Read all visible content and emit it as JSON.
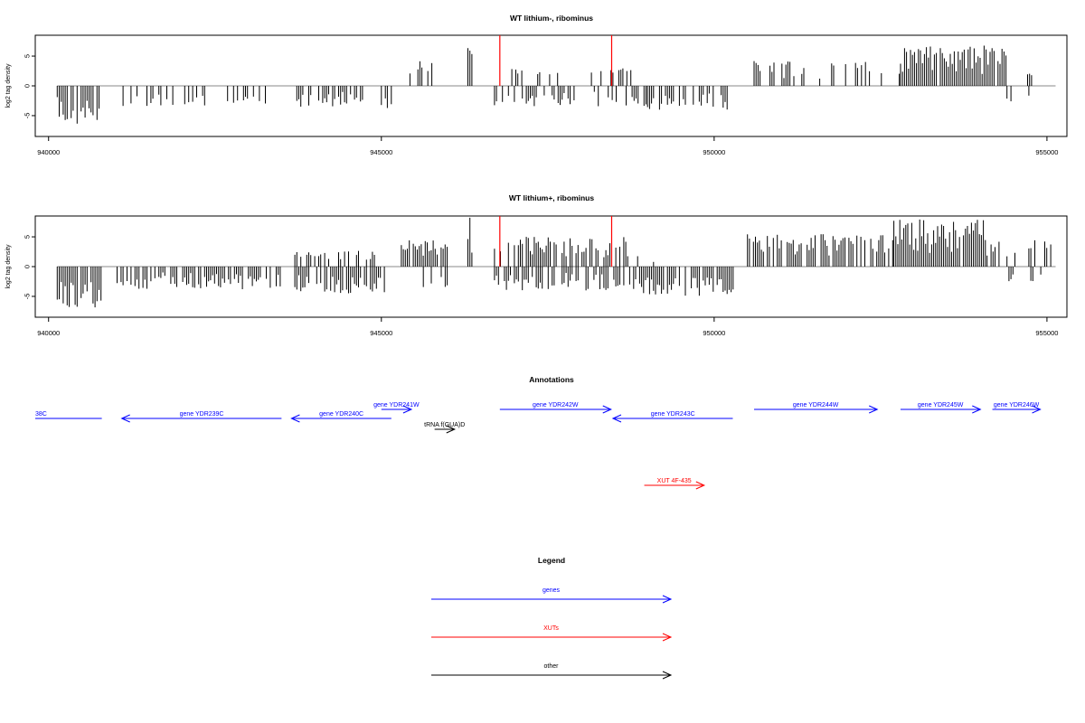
{
  "chart_data": [
    {
      "type": "bar",
      "title": "WT lithium-, ribominus",
      "ylabel": "log2 tag density",
      "xlabel": "",
      "xlim": [
        939800,
        955300
      ],
      "ylim": [
        -8.5,
        8.5
      ],
      "yticks": [
        -5,
        0,
        5
      ],
      "xticks": [
        {
          "value": 940000,
          "label": "940000"
        },
        {
          "value": 945000,
          "label": "945000"
        },
        {
          "value": 950000,
          "label": "950000"
        },
        {
          "value": 955000,
          "label": "955000"
        }
      ],
      "grid": false,
      "baseline": 0,
      "highlight_color": "#ff0000",
      "highlight_lines": [
        {
          "x": 946780,
          "top": 8.5
        },
        {
          "x": 948460,
          "top": 8.5
        }
      ],
      "segments": [
        {
          "x0": 940130,
          "x1": 940800,
          "dir": -1,
          "max": 6.5,
          "density": 0.95
        },
        {
          "x0": 941000,
          "x1": 942350,
          "dir": -1,
          "max": 3.5,
          "density": 0.45
        },
        {
          "x0": 942600,
          "x1": 943300,
          "dir": -1,
          "max": 3.0,
          "density": 0.35
        },
        {
          "x0": 943700,
          "x1": 944800,
          "dir": -1,
          "max": 3.6,
          "density": 0.5
        },
        {
          "x0": 945000,
          "x1": 945150,
          "dir": -1,
          "max": 4.0,
          "density": 0.6
        },
        {
          "x0": 945400,
          "x1": 945900,
          "dir": 1,
          "max": 4.2,
          "density": 0.4
        },
        {
          "x0": 946300,
          "x1": 946360,
          "dir": 1,
          "max": 6.5,
          "density": 1.0
        },
        {
          "x0": 946700,
          "x1": 947900,
          "dir": -1,
          "max": 3.5,
          "density": 0.45
        },
        {
          "x0": 946900,
          "x1": 948200,
          "dir": 1,
          "max": 3.0,
          "density": 0.25
        },
        {
          "x0": 948300,
          "x1": 948800,
          "dir": 1,
          "max": 3.0,
          "density": 0.3
        },
        {
          "x0": 948200,
          "x1": 949000,
          "dir": -1,
          "max": 3.5,
          "density": 0.4
        },
        {
          "x0": 949000,
          "x1": 950200,
          "dir": -1,
          "max": 4.0,
          "density": 0.6
        },
        {
          "x0": 950600,
          "x1": 952800,
          "dir": 1,
          "max": 4.2,
          "density": 0.45
        },
        {
          "x0": 952800,
          "x1": 954400,
          "dir": 1,
          "max": 6.8,
          "density": 0.95
        },
        {
          "x0": 954400,
          "x1": 954900,
          "dir": -1,
          "max": 3.0,
          "density": 0.15
        },
        {
          "x0": 954500,
          "x1": 954950,
          "dir": 1,
          "max": 2.5,
          "density": 0.15
        }
      ]
    },
    {
      "type": "bar",
      "title": "WT lithium+, ribominus",
      "ylabel": "log2 tag density",
      "xlabel": "",
      "xlim": [
        939800,
        955300
      ],
      "ylim": [
        -8.5,
        8.5
      ],
      "yticks": [
        -5,
        0,
        5
      ],
      "xticks": [
        {
          "value": 940000,
          "label": "940000"
        },
        {
          "value": 945000,
          "label": "945000"
        },
        {
          "value": 950000,
          "label": "950000"
        },
        {
          "value": 955000,
          "label": "955000"
        }
      ],
      "grid": false,
      "baseline": 0,
      "highlight_color": "#ff0000",
      "highlight_lines": [
        {
          "x": 946780,
          "top": 8.5
        },
        {
          "x": 948460,
          "top": 8.5
        }
      ],
      "segments": [
        {
          "x0": 940130,
          "x1": 940800,
          "dir": -1,
          "max": 7.0,
          "density": 0.95
        },
        {
          "x0": 941000,
          "x1": 943600,
          "dir": -1,
          "max": 3.8,
          "density": 0.7
        },
        {
          "x0": 943700,
          "x1": 945100,
          "dir": -1,
          "max": 4.5,
          "density": 0.8
        },
        {
          "x0": 943700,
          "x1": 945100,
          "dir": 1,
          "max": 2.8,
          "density": 0.3
        },
        {
          "x0": 945300,
          "x1": 946000,
          "dir": 1,
          "max": 4.5,
          "density": 0.7
        },
        {
          "x0": 945600,
          "x1": 946000,
          "dir": -1,
          "max": 3.5,
          "density": 0.4
        },
        {
          "x0": 946300,
          "x1": 946360,
          "dir": 1,
          "max": 8.5,
          "density": 1.0
        },
        {
          "x0": 946700,
          "x1": 948700,
          "dir": 1,
          "max": 5.0,
          "density": 0.7
        },
        {
          "x0": 946700,
          "x1": 948700,
          "dir": -1,
          "max": 4.0,
          "density": 0.6
        },
        {
          "x0": 948700,
          "x1": 950300,
          "dir": -1,
          "max": 5.0,
          "density": 0.75
        },
        {
          "x0": 948700,
          "x1": 949200,
          "dir": 1,
          "max": 2.5,
          "density": 0.2
        },
        {
          "x0": 950500,
          "x1": 952700,
          "dir": 1,
          "max": 5.5,
          "density": 0.8
        },
        {
          "x0": 952700,
          "x1": 954100,
          "dir": 1,
          "max": 8.0,
          "density": 0.95
        },
        {
          "x0": 954100,
          "x1": 955100,
          "dir": 1,
          "max": 4.5,
          "density": 0.45
        },
        {
          "x0": 954100,
          "x1": 955100,
          "dir": -1,
          "max": 2.5,
          "density": 0.2
        }
      ]
    }
  ],
  "annotations": {
    "title": "Annotations",
    "colors": {
      "genes": "#0000ff",
      "XUTs": "#ff0000",
      "other": "#000000"
    },
    "items": [
      {
        "label": "38C",
        "category": "genes",
        "x0": 939800,
        "x1": 940800,
        "row": 2,
        "dir": "none"
      },
      {
        "label": "gene YDR239C",
        "category": "genes",
        "x0": 941100,
        "x1": 943500,
        "row": 2,
        "dir": "left"
      },
      {
        "label": "gene YDR240C",
        "category": "genes",
        "x0": 943650,
        "x1": 945150,
        "row": 2,
        "dir": "left"
      },
      {
        "label": "gene YDR241W",
        "category": "genes",
        "x0": 945000,
        "x1": 945450,
        "row": 1,
        "dir": "right"
      },
      {
        "label": "tRNA f(GUA)D",
        "category": "other",
        "x0": 945800,
        "x1": 946100,
        "row": 3,
        "dir": "right"
      },
      {
        "label": "gene YDR242W",
        "category": "genes",
        "x0": 946780,
        "x1": 948450,
        "row": 1,
        "dir": "right"
      },
      {
        "label": "gene YDR243C",
        "category": "genes",
        "x0": 948480,
        "x1": 950280,
        "row": 2,
        "dir": "left"
      },
      {
        "label": "XUT 4F-435",
        "category": "XUTs",
        "x0": 948950,
        "x1": 949850,
        "row": 5,
        "dir": "right"
      },
      {
        "label": "gene YDR244W",
        "category": "genes",
        "x0": 950600,
        "x1": 952450,
        "row": 1,
        "dir": "right"
      },
      {
        "label": "gene YDR245W",
        "category": "genes",
        "x0": 952800,
        "x1": 954000,
        "row": 1,
        "dir": "right"
      },
      {
        "label": "gene YDR246W",
        "category": "genes",
        "x0": 954180,
        "x1": 954900,
        "row": 1,
        "dir": "right"
      }
    ]
  },
  "legend": {
    "title": "Legend",
    "entries": [
      {
        "label": "genes",
        "category": "genes"
      },
      {
        "label": "XUTs",
        "category": "XUTs"
      },
      {
        "label": "other",
        "category": "other"
      }
    ]
  }
}
